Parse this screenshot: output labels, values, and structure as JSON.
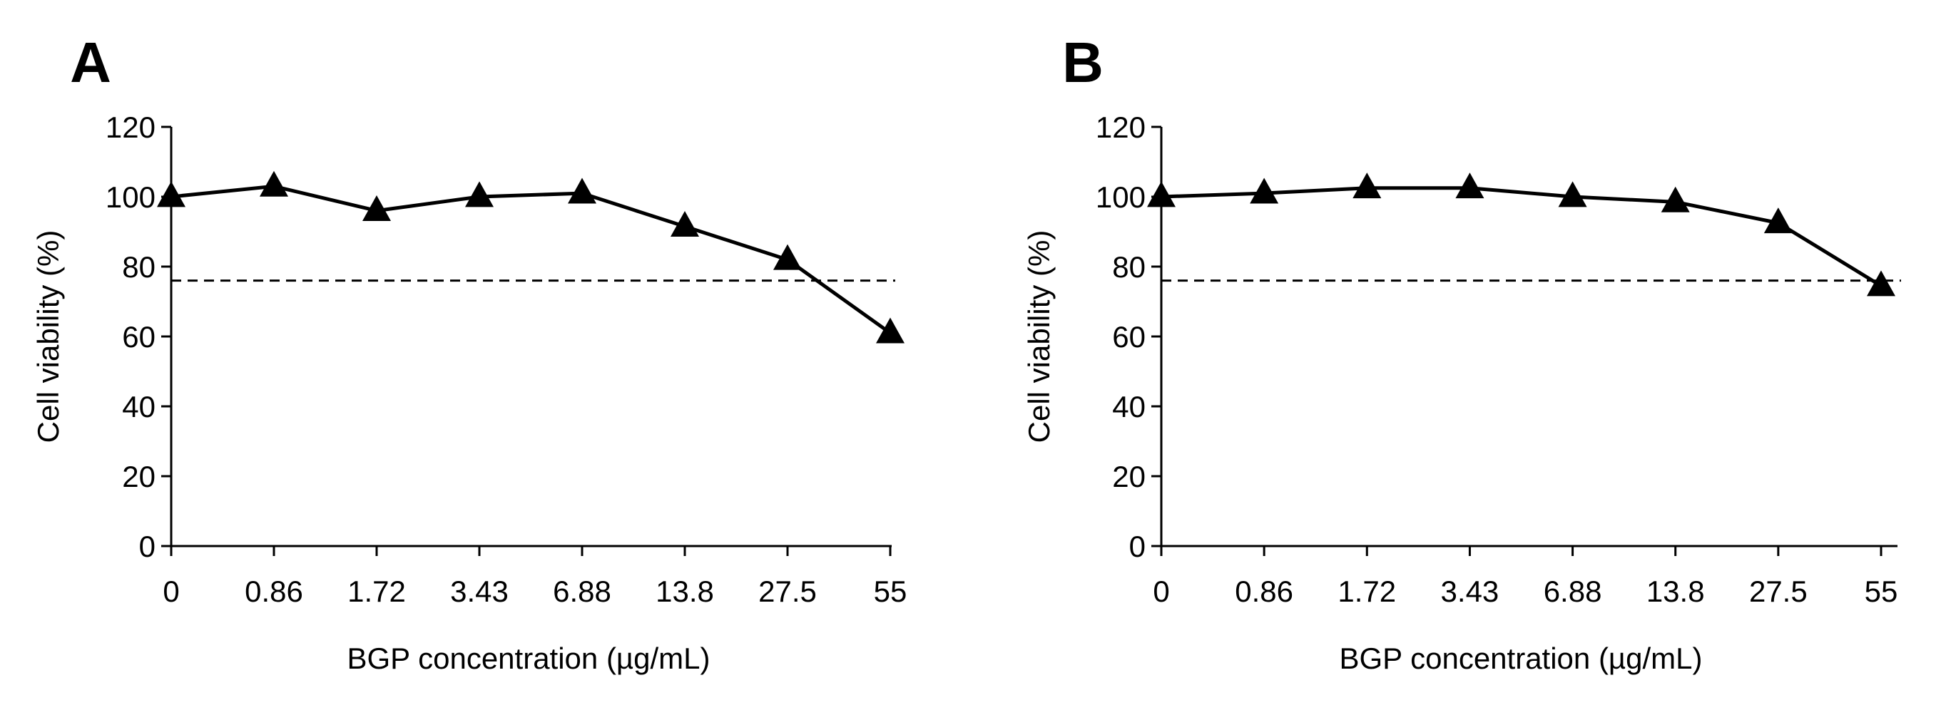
{
  "chart_data": [
    {
      "type": "line",
      "panel_label": "A",
      "categories": [
        "0",
        "0.86",
        "1.72",
        "3.43",
        "6.88",
        "13.8",
        "27.5",
        "55"
      ],
      "series": [
        {
          "name": "Cell viability",
          "marker": "triangle",
          "values": [
            100,
            103,
            96,
            100,
            101,
            91.5,
            82,
            61
          ]
        }
      ],
      "reference_line": {
        "value": 76,
        "style": "dashed"
      },
      "xlabel": "BGP concentration (µg/mL)",
      "ylabel": "Cell viability (%)",
      "ylim": [
        0,
        120
      ],
      "yticks": [
        0,
        20,
        40,
        60,
        80,
        100,
        120
      ],
      "grid": false,
      "legend": "none",
      "colors": {
        "line": "#000000",
        "reference": "#000000"
      }
    },
    {
      "type": "line",
      "panel_label": "B",
      "categories": [
        "0",
        "0.86",
        "1.72",
        "3.43",
        "6.88",
        "13.8",
        "27.5",
        "55"
      ],
      "series": [
        {
          "name": "Cell viability",
          "marker": "triangle",
          "values": [
            100,
            101,
            102.5,
            102.5,
            100,
            98.5,
            92.5,
            74.5
          ]
        }
      ],
      "reference_line": {
        "value": 76,
        "style": "dashed"
      },
      "xlabel": "BGP concentration (µg/mL)",
      "ylabel": "Cell viability (%)",
      "ylim": [
        0,
        120
      ],
      "yticks": [
        0,
        20,
        40,
        60,
        80,
        100,
        120
      ],
      "grid": false,
      "legend": "none",
      "colors": {
        "line": "#000000",
        "reference": "#000000"
      }
    }
  ]
}
